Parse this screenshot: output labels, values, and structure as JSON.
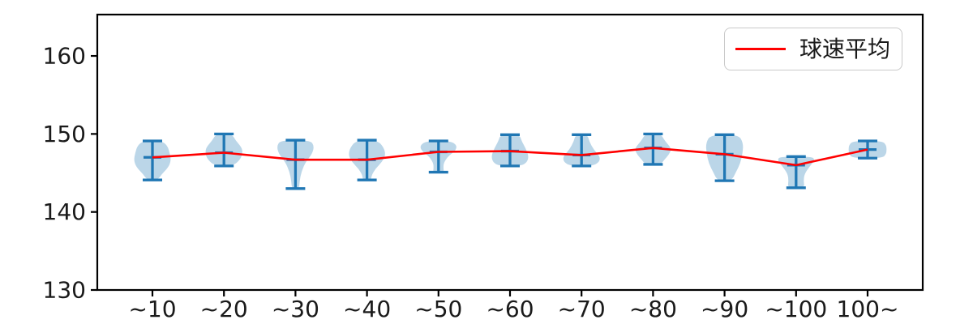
{
  "figure": {
    "background": "#ffffff"
  },
  "legend": {
    "label": "球速平均",
    "line_color": "#ff0000",
    "position": "upper right"
  },
  "chart_data": {
    "type": "violin",
    "title": "",
    "xlabel": "",
    "ylabel": "",
    "categories": [
      "~10",
      "~20",
      "~30",
      "~40",
      "~50",
      "~60",
      "~70",
      "~80",
      "~90",
      "~100",
      "100~"
    ],
    "yticks": [
      130,
      140,
      150,
      160
    ],
    "ylim": [
      130,
      165.3
    ],
    "grid": false,
    "axis_color": "#000000",
    "tick_fontsize_px": 28,
    "series": [
      {
        "name": "球速平均",
        "type": "line",
        "color": "#ff0000",
        "values": [
          147.0,
          147.6,
          146.7,
          146.7,
          147.7,
          147.8,
          147.3,
          148.2,
          147.4,
          146.0,
          148.0
        ]
      }
    ],
    "violin_style": {
      "fill_color": "#1f77b4",
      "fill_alpha": 0.3,
      "line_color": "#2077b4"
    },
    "violins": [
      {
        "category": "~10",
        "min": 144.1,
        "max": 149.1,
        "mean": 147.0,
        "profile": [
          [
            0,
            0.5
          ],
          [
            0.12,
            0.8
          ],
          [
            0.3,
            0.92
          ],
          [
            0.5,
            1.0
          ],
          [
            0.68,
            0.85
          ],
          [
            0.85,
            0.5
          ],
          [
            1,
            0.28
          ]
        ]
      },
      {
        "category": "~20",
        "min": 145.9,
        "max": 150.0,
        "mean": 147.6,
        "profile": [
          [
            0,
            0.42
          ],
          [
            0.2,
            0.62
          ],
          [
            0.42,
            0.95
          ],
          [
            0.58,
            1.0
          ],
          [
            0.78,
            0.9
          ],
          [
            1,
            0.5
          ]
        ]
      },
      {
        "category": "~30",
        "min": 143.0,
        "max": 149.2,
        "mean": 146.7,
        "profile": [
          [
            0,
            0.8
          ],
          [
            0.12,
            1.0
          ],
          [
            0.28,
            0.9
          ],
          [
            0.45,
            0.55
          ],
          [
            0.65,
            0.32
          ],
          [
            0.85,
            0.22
          ],
          [
            1,
            0.2
          ]
        ]
      },
      {
        "category": "~40",
        "min": 144.1,
        "max": 149.2,
        "mean": 146.7,
        "profile": [
          [
            0,
            0.55
          ],
          [
            0.18,
            0.9
          ],
          [
            0.38,
            1.0
          ],
          [
            0.55,
            0.8
          ],
          [
            0.72,
            0.45
          ],
          [
            0.88,
            0.25
          ],
          [
            1,
            0.22
          ]
        ]
      },
      {
        "category": "~50",
        "min": 145.1,
        "max": 149.1,
        "mean": 147.7,
        "profile": [
          [
            0,
            0.65
          ],
          [
            0.15,
            1.0
          ],
          [
            0.32,
            0.9
          ],
          [
            0.5,
            0.5
          ],
          [
            0.7,
            0.28
          ],
          [
            0.88,
            0.26
          ],
          [
            1,
            0.3
          ]
        ]
      },
      {
        "category": "~60",
        "min": 145.9,
        "max": 149.9,
        "mean": 147.8,
        "profile": [
          [
            0,
            0.52
          ],
          [
            0.2,
            0.62
          ],
          [
            0.45,
            0.85
          ],
          [
            0.68,
            1.0
          ],
          [
            0.88,
            0.92
          ],
          [
            1,
            0.6
          ]
        ]
      },
      {
        "category": "~70",
        "min": 145.9,
        "max": 149.9,
        "mean": 147.3,
        "profile": [
          [
            0,
            0.32
          ],
          [
            0.22,
            0.42
          ],
          [
            0.48,
            0.65
          ],
          [
            0.7,
            1.0
          ],
          [
            0.88,
            0.95
          ],
          [
            1,
            0.6
          ]
        ]
      },
      {
        "category": "~80",
        "min": 146.1,
        "max": 150.0,
        "mean": 148.2,
        "profile": [
          [
            0,
            0.42
          ],
          [
            0.22,
            0.62
          ],
          [
            0.48,
            1.0
          ],
          [
            0.68,
            0.85
          ],
          [
            0.85,
            0.6
          ],
          [
            1,
            0.42
          ]
        ]
      },
      {
        "category": "~90",
        "min": 144.0,
        "max": 149.9,
        "mean": 147.4,
        "profile": [
          [
            0,
            0.75
          ],
          [
            0.18,
            1.0
          ],
          [
            0.4,
            0.97
          ],
          [
            0.62,
            0.85
          ],
          [
            0.82,
            0.6
          ],
          [
            1,
            0.38
          ]
        ]
      },
      {
        "category": "~100",
        "min": 143.1,
        "max": 147.1,
        "mean": 146.0,
        "profile": [
          [
            0,
            0.88
          ],
          [
            0.12,
            1.0
          ],
          [
            0.3,
            0.75
          ],
          [
            0.55,
            0.45
          ],
          [
            0.78,
            0.4
          ],
          [
            1,
            0.46
          ]
        ]
      },
      {
        "category": "100~",
        "min": 146.9,
        "max": 149.1,
        "mean": 148.0,
        "profile": [
          [
            0,
            0.8
          ],
          [
            0.25,
            1.0
          ],
          [
            0.5,
            1.02
          ],
          [
            0.75,
            1.0
          ],
          [
            1,
            0.8
          ]
        ]
      }
    ]
  }
}
